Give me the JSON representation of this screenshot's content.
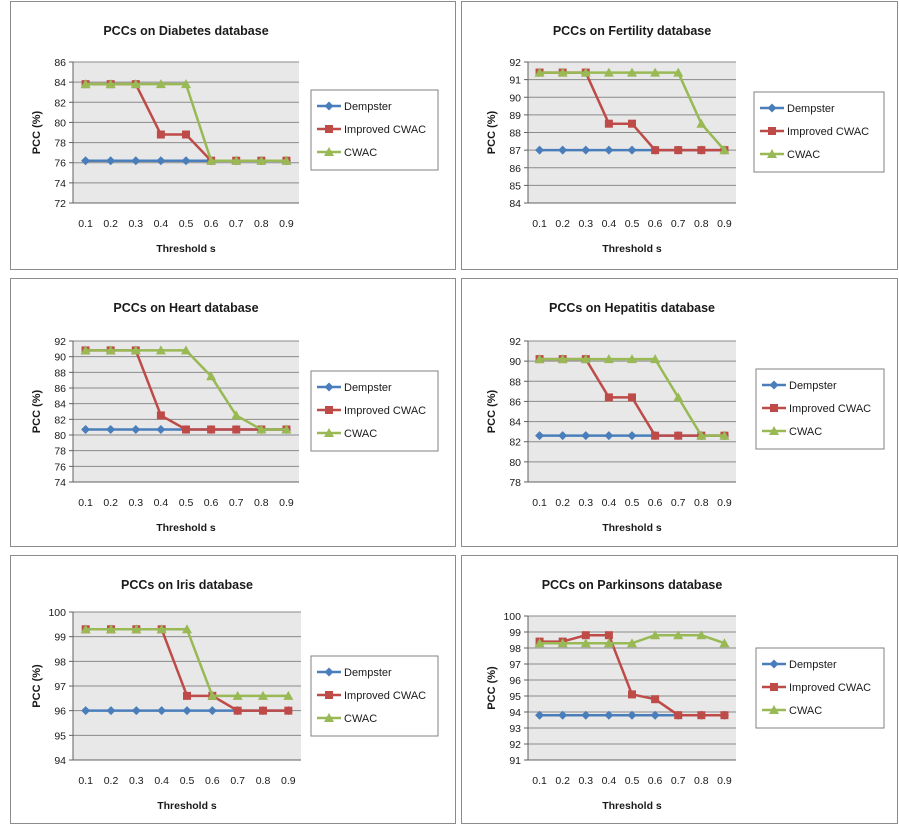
{
  "colors": {
    "dempster": "#4a7ebb",
    "improved": "#be4b48",
    "cwac": "#98b954",
    "plot_bg": "#e8e8e8",
    "grid": "#8a8a8a"
  },
  "chart_data": [
    {
      "type": "line",
      "title": "PCCs  on  Diabetes database",
      "xlabel": "Threshold s",
      "ylabel": "PCC (%)",
      "categories": [
        "0.1",
        "0.2",
        "0.3",
        "0.4",
        "0.5",
        "0.6",
        "0.7",
        "0.8",
        "0.9"
      ],
      "ylim": [
        72,
        86
      ],
      "yticks": [
        "72",
        "74",
        "76",
        "78",
        "80",
        "82",
        "84",
        "86"
      ],
      "grid": true,
      "legend": "right",
      "series": [
        {
          "name": "Dempster",
          "marker": "diamond",
          "values": [
            76.2,
            76.2,
            76.2,
            76.2,
            76.2,
            76.2,
            76.2,
            76.2,
            76.2
          ]
        },
        {
          "name": "Improved CWAC",
          "marker": "square",
          "values": [
            83.8,
            83.8,
            83.8,
            78.8,
            78.8,
            76.2,
            76.2,
            76.2,
            76.2
          ]
        },
        {
          "name": "CWAC",
          "marker": "triangle",
          "values": [
            83.8,
            83.8,
            83.8,
            83.8,
            83.8,
            76.2,
            76.2,
            76.2,
            76.2
          ]
        }
      ]
    },
    {
      "type": "line",
      "title": "PCCs  on  Fertility database",
      "xlabel": "Threshold s",
      "ylabel": "PCC (%)",
      "categories": [
        "0.1",
        "0.2",
        "0.3",
        "0.4",
        "0.5",
        "0.6",
        "0.7",
        "0.8",
        "0.9"
      ],
      "ylim": [
        84,
        92
      ],
      "yticks": [
        "84",
        "85",
        "86",
        "87",
        "88",
        "89",
        "90",
        "91",
        "92"
      ],
      "grid": true,
      "legend": "right",
      "series": [
        {
          "name": "Dempster",
          "marker": "diamond",
          "values": [
            87,
            87,
            87,
            87,
            87,
            87,
            87,
            87,
            87
          ]
        },
        {
          "name": "Improved CWAC",
          "marker": "square",
          "values": [
            91.4,
            91.4,
            91.4,
            88.5,
            88.5,
            87,
            87,
            87,
            87
          ]
        },
        {
          "name": "CWAC",
          "marker": "triangle",
          "values": [
            91.4,
            91.4,
            91.4,
            91.4,
            91.4,
            91.4,
            91.4,
            88.5,
            87
          ]
        }
      ]
    },
    {
      "type": "line",
      "title": "PCCs  on  Heart database",
      "xlabel": "Threshold s",
      "ylabel": "PCC (%)",
      "categories": [
        "0.1",
        "0.2",
        "0.3",
        "0.4",
        "0.5",
        "0.6",
        "0.7",
        "0.8",
        "0.9"
      ],
      "ylim": [
        74,
        92
      ],
      "yticks": [
        "74",
        "76",
        "78",
        "80",
        "82",
        "84",
        "86",
        "88",
        "90",
        "92"
      ],
      "grid": true,
      "legend": "right",
      "series": [
        {
          "name": "Dempster",
          "marker": "diamond",
          "values": [
            80.7,
            80.7,
            80.7,
            80.7,
            80.7,
            80.7,
            80.7,
            80.7,
            80.7
          ]
        },
        {
          "name": "Improved CWAC",
          "marker": "square",
          "values": [
            90.8,
            90.8,
            90.8,
            82.5,
            80.7,
            80.7,
            80.7,
            80.7,
            80.7
          ]
        },
        {
          "name": "CWAC",
          "marker": "triangle",
          "values": [
            90.8,
            90.8,
            90.8,
            90.8,
            90.8,
            87.5,
            82.5,
            80.7,
            80.7
          ]
        }
      ]
    },
    {
      "type": "line",
      "title": "PCCs  on  Hepatitis database",
      "xlabel": "Threshold s",
      "ylabel": "PCC (%)",
      "categories": [
        "0.1",
        "0.2",
        "0.3",
        "0.4",
        "0.5",
        "0.6",
        "0.7",
        "0.8",
        "0.9"
      ],
      "ylim": [
        78,
        92
      ],
      "yticks": [
        "78",
        "80",
        "82",
        "84",
        "86",
        "88",
        "90",
        "92"
      ],
      "grid": true,
      "legend": "right",
      "series": [
        {
          "name": "Dempster",
          "marker": "diamond",
          "values": [
            82.6,
            82.6,
            82.6,
            82.6,
            82.6,
            82.6,
            82.6,
            82.6,
            82.6
          ]
        },
        {
          "name": "Improved CWAC",
          "marker": "square",
          "values": [
            90.2,
            90.2,
            90.2,
            86.4,
            86.4,
            82.6,
            82.6,
            82.6,
            82.6
          ]
        },
        {
          "name": "CWAC",
          "marker": "triangle",
          "values": [
            90.2,
            90.2,
            90.2,
            90.2,
            90.2,
            90.2,
            86.4,
            82.6,
            82.6
          ]
        }
      ]
    },
    {
      "type": "line",
      "title": "PCCs  on  Iris database",
      "xlabel": "Threshold s",
      "ylabel": "PCC (%)",
      "categories": [
        "0.1",
        "0.2",
        "0.3",
        "0.4",
        "0.5",
        "0.6",
        "0.7",
        "0.8",
        "0.9"
      ],
      "ylim": [
        94,
        100
      ],
      "yticks": [
        "94",
        "95",
        "96",
        "97",
        "98",
        "99",
        "100"
      ],
      "grid": true,
      "legend": "right",
      "series": [
        {
          "name": "Dempster",
          "marker": "diamond",
          "values": [
            96,
            96,
            96,
            96,
            96,
            96,
            96,
            96,
            96
          ]
        },
        {
          "name": "Improved CWAC",
          "marker": "square",
          "values": [
            99.3,
            99.3,
            99.3,
            99.3,
            96.6,
            96.6,
            96,
            96,
            96
          ]
        },
        {
          "name": "CWAC",
          "marker": "triangle",
          "values": [
            99.3,
            99.3,
            99.3,
            99.3,
            99.3,
            96.6,
            96.6,
            96.6,
            96.6
          ]
        }
      ]
    },
    {
      "type": "line",
      "title": "PCCs  on  Parkinsons database",
      "xlabel": "Threshold s",
      "ylabel": "PCC (%)",
      "categories": [
        "0.1",
        "0.2",
        "0.3",
        "0.4",
        "0.5",
        "0.6",
        "0.7",
        "0.8",
        "0.9"
      ],
      "ylim": [
        91,
        100
      ],
      "yticks": [
        "91",
        "92",
        "93",
        "94",
        "95",
        "96",
        "97",
        "98",
        "99",
        "100"
      ],
      "grid": true,
      "legend": "right",
      "series": [
        {
          "name": "Dempster",
          "marker": "diamond",
          "values": [
            93.8,
            93.8,
            93.8,
            93.8,
            93.8,
            93.8,
            93.8,
            93.8,
            93.8
          ]
        },
        {
          "name": "Improved CWAC",
          "marker": "square",
          "values": [
            98.4,
            98.4,
            98.8,
            98.8,
            95.1,
            94.8,
            93.8,
            93.8,
            93.8
          ]
        },
        {
          "name": "CWAC",
          "marker": "triangle",
          "values": [
            98.3,
            98.3,
            98.3,
            98.3,
            98.3,
            98.8,
            98.8,
            98.8,
            98.3
          ]
        }
      ]
    }
  ]
}
